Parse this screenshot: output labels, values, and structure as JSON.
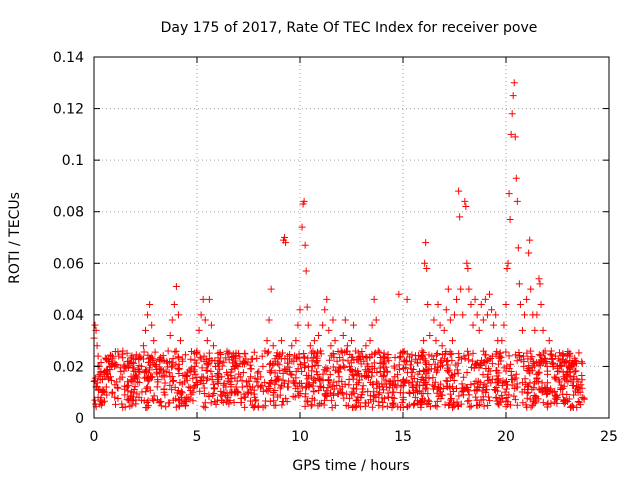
{
  "chart_data": {
    "type": "scatter",
    "title": "Day 175 of 2017, Rate Of TEC Index for receiver pove",
    "xlabel": "GPS time / hours",
    "ylabel": "ROTI / TECUs",
    "xlim": [
      0,
      25
    ],
    "ylim": [
      0,
      0.14
    ],
    "x_ticks": [
      0,
      5,
      10,
      15,
      20,
      25
    ],
    "x_tick_labels": [
      "0",
      "5",
      "10",
      "15",
      "20",
      "25"
    ],
    "y_ticks": [
      0,
      0.02,
      0.04,
      0.06,
      0.08,
      0.1,
      0.12,
      0.14
    ],
    "y_tick_labels": [
      "0",
      "0.02",
      "0.04",
      "0.06",
      "0.08",
      "0.1",
      "0.12",
      "0.14"
    ],
    "grid": true,
    "marker": "+",
    "color": "#ff0000",
    "series": [
      {
        "name": "ROTI",
        "points": [
          [
            0.0,
            0.031
          ],
          [
            0.05,
            0.036
          ],
          [
            0.1,
            0.034
          ],
          [
            0.15,
            0.028
          ],
          [
            0.2,
            0.024
          ],
          [
            0.25,
            0.02
          ],
          [
            0.1,
            0.012
          ],
          [
            0.2,
            0.008
          ],
          [
            0.3,
            0.015
          ],
          [
            0.4,
            0.01
          ],
          [
            0.5,
            0.018
          ],
          [
            0.6,
            0.012
          ],
          [
            0.7,
            0.022
          ],
          [
            0.8,
            0.016
          ],
          [
            0.9,
            0.01
          ],
          [
            1.0,
            0.02
          ],
          [
            1.1,
            0.014
          ],
          [
            1.2,
            0.024
          ],
          [
            1.3,
            0.018
          ],
          [
            1.4,
            0.026
          ],
          [
            1.5,
            0.02
          ],
          [
            1.6,
            0.012
          ],
          [
            1.7,
            0.022
          ],
          [
            1.8,
            0.016
          ],
          [
            1.9,
            0.01
          ],
          [
            2.0,
            0.018
          ],
          [
            2.1,
            0.014
          ],
          [
            2.2,
            0.024
          ],
          [
            2.3,
            0.02
          ],
          [
            2.4,
            0.028
          ],
          [
            2.5,
            0.034
          ],
          [
            2.6,
            0.04
          ],
          [
            2.7,
            0.044
          ],
          [
            2.8,
            0.036
          ],
          [
            2.9,
            0.03
          ],
          [
            3.0,
            0.02
          ],
          [
            3.1,
            0.014
          ],
          [
            3.2,
            0.022
          ],
          [
            3.3,
            0.016
          ],
          [
            3.4,
            0.01
          ],
          [
            3.5,
            0.018
          ],
          [
            3.6,
            0.026
          ],
          [
            3.7,
            0.032
          ],
          [
            3.8,
            0.038
          ],
          [
            3.9,
            0.044
          ],
          [
            4.0,
            0.051
          ],
          [
            4.1,
            0.04
          ],
          [
            4.2,
            0.03
          ],
          [
            4.3,
            0.022
          ],
          [
            4.4,
            0.014
          ],
          [
            4.5,
            0.008
          ],
          [
            4.6,
            0.012
          ],
          [
            4.7,
            0.018
          ],
          [
            4.8,
            0.01
          ],
          [
            4.9,
            0.02
          ],
          [
            5.0,
            0.026
          ],
          [
            5.1,
            0.034
          ],
          [
            5.2,
            0.04
          ],
          [
            5.3,
            0.046
          ],
          [
            5.4,
            0.038
          ],
          [
            5.5,
            0.03
          ],
          [
            5.6,
            0.046
          ],
          [
            5.7,
            0.036
          ],
          [
            5.8,
            0.028
          ],
          [
            5.9,
            0.02
          ],
          [
            6.0,
            0.014
          ],
          [
            6.1,
            0.022
          ],
          [
            6.2,
            0.016
          ],
          [
            6.3,
            0.01
          ],
          [
            6.4,
            0.012
          ],
          [
            6.5,
            0.008
          ],
          [
            6.6,
            0.014
          ],
          [
            6.7,
            0.01
          ],
          [
            6.8,
            0.006
          ],
          [
            6.9,
            0.012
          ],
          [
            7.0,
            0.01
          ],
          [
            7.1,
            0.016
          ],
          [
            7.2,
            0.012
          ],
          [
            7.3,
            0.008
          ],
          [
            7.4,
            0.014
          ],
          [
            7.5,
            0.01
          ],
          [
            7.6,
            0.016
          ],
          [
            7.7,
            0.012
          ],
          [
            7.8,
            0.008
          ],
          [
            7.9,
            0.014
          ],
          [
            8.0,
            0.018
          ],
          [
            8.1,
            0.012
          ],
          [
            8.2,
            0.02
          ],
          [
            8.3,
            0.026
          ],
          [
            8.4,
            0.03
          ],
          [
            8.5,
            0.038
          ],
          [
            8.6,
            0.05
          ],
          [
            8.7,
            0.028
          ],
          [
            8.8,
            0.022
          ],
          [
            8.9,
            0.016
          ],
          [
            9.0,
            0.024
          ],
          [
            9.1,
            0.03
          ],
          [
            9.2,
            0.069
          ],
          [
            9.25,
            0.07
          ],
          [
            9.3,
            0.068
          ],
          [
            9.4,
            0.024
          ],
          [
            9.5,
            0.018
          ],
          [
            9.6,
            0.028
          ],
          [
            9.7,
            0.022
          ],
          [
            9.8,
            0.03
          ],
          [
            9.9,
            0.036
          ],
          [
            10.0,
            0.042
          ],
          [
            10.1,
            0.074
          ],
          [
            10.15,
            0.083
          ],
          [
            10.2,
            0.084
          ],
          [
            10.25,
            0.067
          ],
          [
            10.3,
            0.057
          ],
          [
            10.35,
            0.043
          ],
          [
            10.4,
            0.036
          ],
          [
            10.5,
            0.028
          ],
          [
            10.6,
            0.02
          ],
          [
            10.7,
            0.03
          ],
          [
            10.8,
            0.024
          ],
          [
            10.9,
            0.032
          ],
          [
            11.0,
            0.026
          ],
          [
            11.1,
            0.036
          ],
          [
            11.2,
            0.042
          ],
          [
            11.3,
            0.046
          ],
          [
            11.4,
            0.034
          ],
          [
            11.5,
            0.028
          ],
          [
            11.6,
            0.038
          ],
          [
            11.7,
            0.03
          ],
          [
            11.8,
            0.022
          ],
          [
            11.9,
            0.016
          ],
          [
            12.0,
            0.026
          ],
          [
            12.1,
            0.032
          ],
          [
            12.2,
            0.038
          ],
          [
            12.3,
            0.028
          ],
          [
            12.4,
            0.02
          ],
          [
            12.5,
            0.03
          ],
          [
            12.6,
            0.036
          ],
          [
            12.7,
            0.026
          ],
          [
            12.8,
            0.018
          ],
          [
            12.9,
            0.024
          ],
          [
            13.0,
            0.016
          ],
          [
            13.1,
            0.022
          ],
          [
            13.2,
            0.028
          ],
          [
            13.3,
            0.02
          ],
          [
            13.4,
            0.03
          ],
          [
            13.5,
            0.036
          ],
          [
            13.6,
            0.046
          ],
          [
            13.7,
            0.038
          ],
          [
            13.8,
            0.026
          ],
          [
            13.9,
            0.018
          ],
          [
            14.0,
            0.012
          ],
          [
            14.1,
            0.018
          ],
          [
            14.2,
            0.012
          ],
          [
            14.3,
            0.008
          ],
          [
            14.4,
            0.014
          ],
          [
            14.5,
            0.01
          ],
          [
            14.6,
            0.016
          ],
          [
            14.7,
            0.012
          ],
          [
            14.8,
            0.048
          ],
          [
            14.9,
            0.012
          ],
          [
            15.0,
            0.008
          ],
          [
            15.1,
            0.014
          ],
          [
            15.2,
            0.046
          ],
          [
            15.3,
            0.01
          ],
          [
            15.4,
            0.016
          ],
          [
            15.5,
            0.012
          ],
          [
            15.6,
            0.008
          ],
          [
            15.7,
            0.014
          ],
          [
            15.8,
            0.018
          ],
          [
            15.9,
            0.024
          ],
          [
            16.0,
            0.03
          ],
          [
            16.05,
            0.06
          ],
          [
            16.1,
            0.068
          ],
          [
            16.15,
            0.058
          ],
          [
            16.2,
            0.044
          ],
          [
            16.3,
            0.032
          ],
          [
            16.4,
            0.024
          ],
          [
            16.5,
            0.038
          ],
          [
            16.6,
            0.03
          ],
          [
            16.7,
            0.044
          ],
          [
            16.8,
            0.036
          ],
          [
            16.9,
            0.028
          ],
          [
            17.0,
            0.034
          ],
          [
            17.1,
            0.042
          ],
          [
            17.2,
            0.05
          ],
          [
            17.3,
            0.038
          ],
          [
            17.4,
            0.03
          ],
          [
            17.5,
            0.04
          ],
          [
            17.6,
            0.046
          ],
          [
            17.7,
            0.088
          ],
          [
            17.75,
            0.078
          ],
          [
            17.8,
            0.05
          ],
          [
            17.9,
            0.04
          ],
          [
            18.0,
            0.084
          ],
          [
            18.05,
            0.082
          ],
          [
            18.1,
            0.06
          ],
          [
            18.15,
            0.058
          ],
          [
            18.2,
            0.05
          ],
          [
            18.3,
            0.044
          ],
          [
            18.4,
            0.036
          ],
          [
            18.5,
            0.046
          ],
          [
            18.6,
            0.04
          ],
          [
            18.7,
            0.034
          ],
          [
            18.8,
            0.044
          ],
          [
            18.9,
            0.038
          ],
          [
            19.0,
            0.046
          ],
          [
            19.1,
            0.04
          ],
          [
            19.2,
            0.048
          ],
          [
            19.3,
            0.042
          ],
          [
            19.4,
            0.036
          ],
          [
            19.5,
            0.04
          ],
          [
            19.6,
            0.03
          ],
          [
            19.7,
            0.024
          ],
          [
            19.8,
            0.03
          ],
          [
            19.9,
            0.036
          ],
          [
            20.0,
            0.044
          ],
          [
            20.05,
            0.058
          ],
          [
            20.1,
            0.06
          ],
          [
            20.15,
            0.087
          ],
          [
            20.2,
            0.077
          ],
          [
            20.25,
            0.11
          ],
          [
            20.3,
            0.118
          ],
          [
            20.35,
            0.125
          ],
          [
            20.4,
            0.13
          ],
          [
            20.45,
            0.109
          ],
          [
            20.5,
            0.093
          ],
          [
            20.55,
            0.084
          ],
          [
            20.6,
            0.066
          ],
          [
            20.65,
            0.052
          ],
          [
            20.7,
            0.044
          ],
          [
            20.8,
            0.034
          ],
          [
            20.9,
            0.04
          ],
          [
            21.0,
            0.046
          ],
          [
            21.1,
            0.064
          ],
          [
            21.15,
            0.069
          ],
          [
            21.2,
            0.05
          ],
          [
            21.3,
            0.04
          ],
          [
            21.4,
            0.034
          ],
          [
            21.5,
            0.04
          ],
          [
            21.6,
            0.054
          ],
          [
            21.65,
            0.052
          ],
          [
            21.7,
            0.044
          ],
          [
            21.8,
            0.034
          ],
          [
            21.9,
            0.026
          ],
          [
            22.0,
            0.02
          ],
          [
            22.1,
            0.03
          ],
          [
            22.2,
            0.026
          ],
          [
            22.3,
            0.02
          ],
          [
            22.4,
            0.024
          ],
          [
            22.5,
            0.018
          ],
          [
            22.6,
            0.014
          ],
          [
            22.7,
            0.02
          ],
          [
            22.8,
            0.016
          ],
          [
            22.9,
            0.022
          ],
          [
            23.0,
            0.018
          ],
          [
            23.1,
            0.024
          ],
          [
            23.2,
            0.02
          ],
          [
            23.3,
            0.016
          ],
          [
            23.4,
            0.022
          ],
          [
            23.5,
            0.014
          ],
          [
            23.6,
            0.01
          ],
          [
            23.7,
            0.008
          ]
        ]
      }
    ]
  }
}
